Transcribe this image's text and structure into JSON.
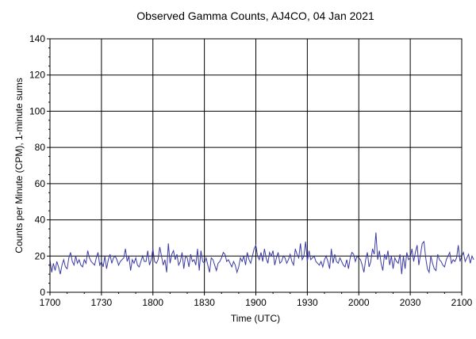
{
  "chart_data": {
    "type": "line",
    "title": "Observed Gamma Counts, AJ4CO, 04 Jan 2021",
    "xlabel": "Time (UTC)",
    "ylabel": "Counts per Minute (CPM), 1-minute sums",
    "ylim": [
      0,
      140
    ],
    "xlim_minutes": [
      0,
      240
    ],
    "x_tick_labels": [
      "1700",
      "1730",
      "1800",
      "1830",
      "1900",
      "1930",
      "2000",
      "2030",
      "2100"
    ],
    "y_tick_labels": [
      "0",
      "20",
      "40",
      "60",
      "80",
      "100",
      "120",
      "140"
    ],
    "grid": true,
    "series": [
      {
        "color": "#3a3aa6",
        "x_start": "1700",
        "x_step_minutes": 1,
        "values": [
          18,
          11,
          16,
          12,
          17,
          14,
          10,
          15,
          18,
          14,
          13,
          19,
          22,
          17,
          15,
          20,
          16,
          18,
          15,
          14,
          18,
          16,
          23,
          19,
          17,
          16,
          15,
          19,
          22,
          15,
          17,
          14,
          20,
          13,
          18,
          21,
          16,
          19,
          20,
          18,
          15,
          17,
          18,
          19,
          24,
          17,
          20,
          12,
          18,
          16,
          19,
          15,
          14,
          17,
          20,
          17,
          17,
          23,
          15,
          18,
          24,
          17,
          16,
          18,
          25,
          20,
          15,
          18,
          11,
          27,
          16,
          21,
          23,
          18,
          21,
          15,
          17,
          22,
          13,
          20,
          19,
          14,
          21,
          17,
          18,
          15,
          24,
          12,
          23,
          17,
          16,
          19,
          15,
          11,
          19,
          18,
          15,
          12,
          16,
          17,
          19,
          22,
          21,
          17,
          18,
          16,
          14,
          17,
          15,
          11,
          14,
          19,
          17,
          20,
          15,
          22,
          18,
          16,
          20,
          24,
          26,
          20,
          18,
          22,
          17,
          24,
          19,
          16,
          22,
          20,
          23,
          15,
          19,
          22,
          16,
          17,
          20,
          19,
          16,
          18,
          21,
          17,
          15,
          24,
          21,
          19,
          27,
          18,
          20,
          28,
          17,
          23,
          18,
          19,
          20,
          17,
          16,
          15,
          17,
          14,
          18,
          20,
          17,
          13,
          24,
          16,
          21,
          17,
          16,
          19,
          17,
          15,
          14,
          18,
          13,
          19,
          22,
          21,
          17,
          20,
          19,
          18,
          15,
          11,
          18,
          22,
          14,
          17,
          24,
          21,
          33,
          18,
          23,
          16,
          12,
          21,
          18,
          23,
          15,
          20,
          13,
          19,
          17,
          16,
          21,
          10,
          20,
          13,
          22,
          18,
          19,
          24,
          17,
          22,
          26,
          15,
          21,
          27,
          28,
          19,
          13,
          11,
          20,
          16,
          13,
          12,
          21,
          18,
          17,
          15,
          14,
          18,
          20,
          22,
          16,
          18,
          17,
          19,
          26,
          17,
          20,
          22,
          17,
          19,
          21,
          16,
          20,
          18
        ]
      }
    ]
  }
}
